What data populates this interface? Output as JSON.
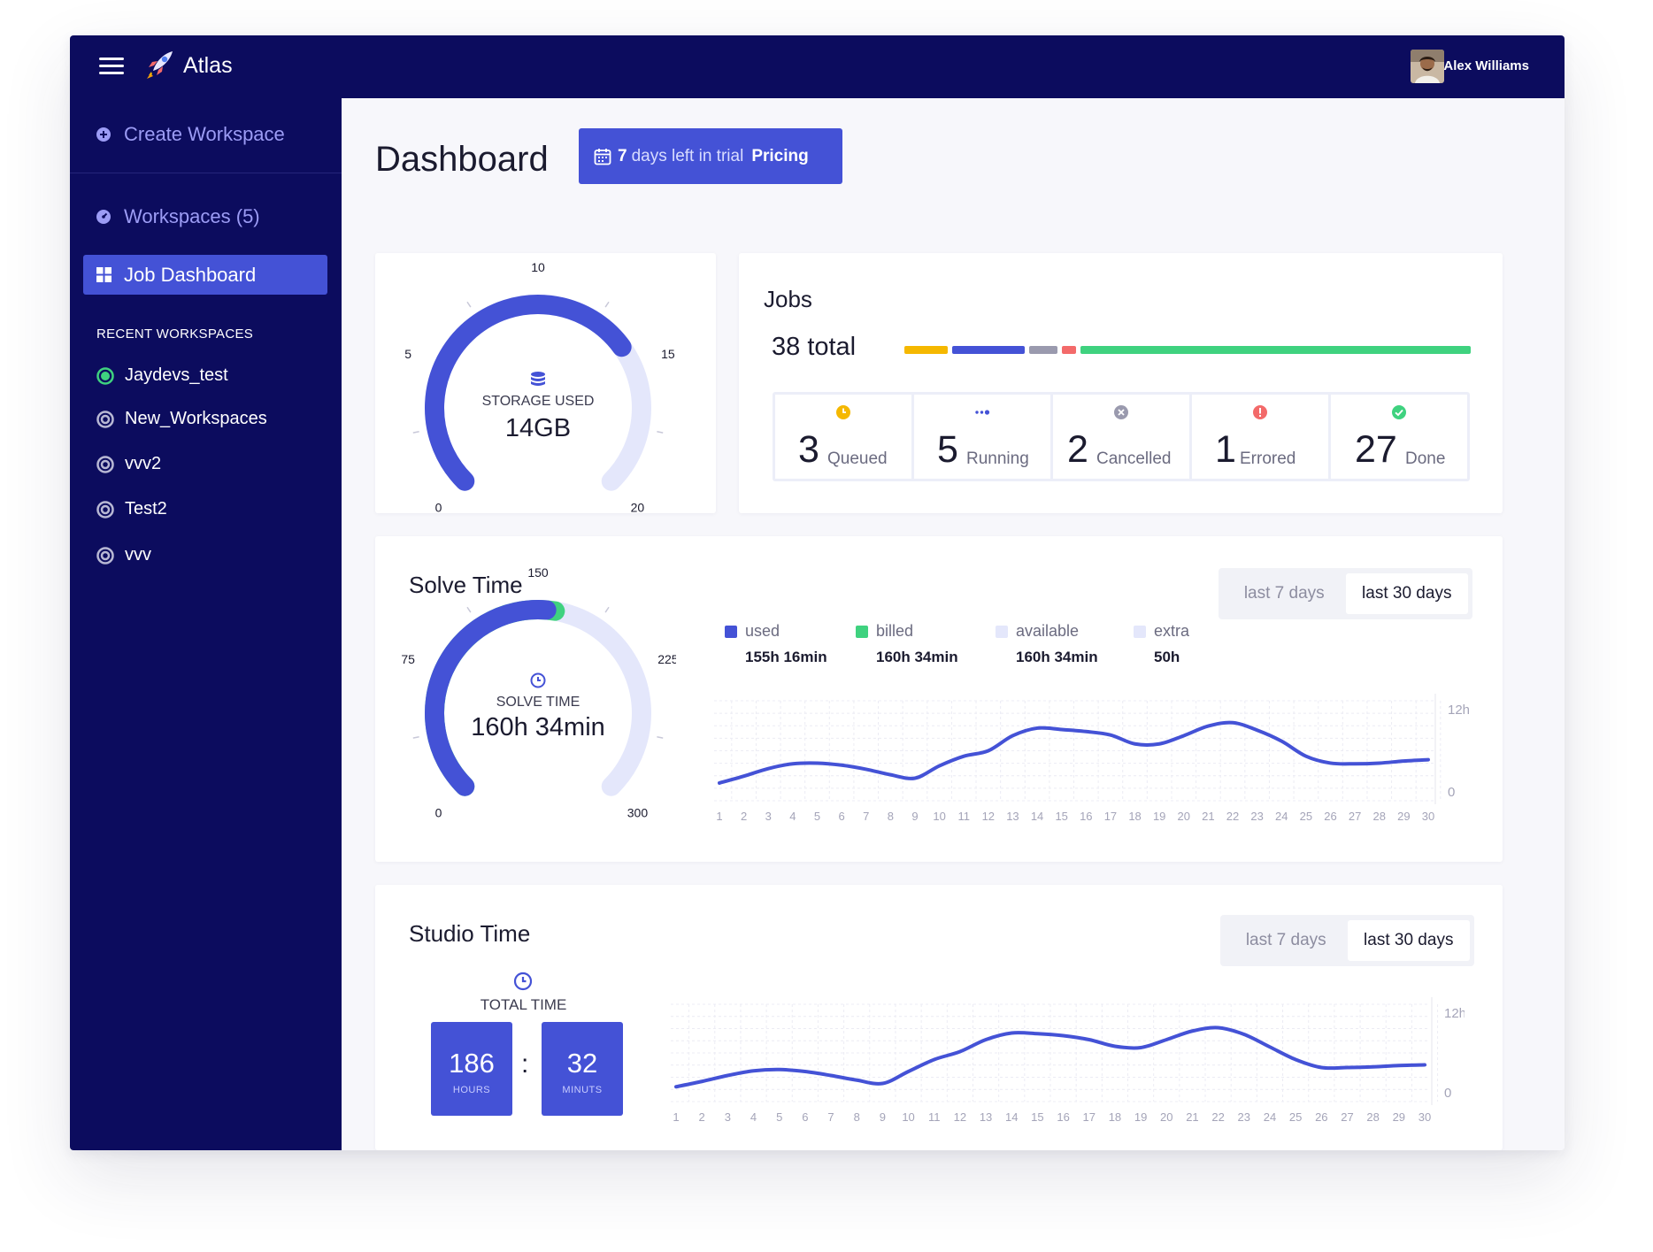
{
  "app": {
    "title": "Atlas",
    "user_name": "Alex Williams"
  },
  "sidebar": {
    "create_workspace": "Create Workspace",
    "workspaces": "Workspaces (5)",
    "active_item": "Job Dashboard",
    "recent_label": "RECENT WORKSPACES",
    "recent": [
      {
        "label": "Jaydevs_test",
        "active": true
      },
      {
        "label": "New_Workspaces",
        "active": false
      },
      {
        "label": "vvv2",
        "active": false
      },
      {
        "label": "Test2",
        "active": false
      },
      {
        "label": "vvv",
        "active": false
      }
    ]
  },
  "header": {
    "page_title": "Dashboard",
    "trial_days": "7",
    "trial_text": "days left in trial",
    "pricing": "Pricing"
  },
  "storage": {
    "label": "STORAGE USED",
    "value": "14GB",
    "ticks": [
      "0",
      "5",
      "10",
      "15",
      "20"
    ],
    "fill_value": 14,
    "max": 20
  },
  "jobs": {
    "title": "Jobs",
    "total": "38 total",
    "statuses": [
      {
        "count": "3",
        "label": "Queued",
        "color": "#f5b800",
        "icon": "clock-icon"
      },
      {
        "count": "5",
        "label": "Running",
        "color": "#4452d6",
        "icon": "dots-icon"
      },
      {
        "count": "2",
        "label": "Cancelled",
        "color": "#9a9aae",
        "icon": "x-circle-icon"
      },
      {
        "count": "1",
        "label": "Errored",
        "color": "#f36a6a",
        "icon": "alert-icon"
      },
      {
        "count": "27",
        "label": "Done",
        "color": "#3fd27f",
        "icon": "check-icon"
      }
    ]
  },
  "solve": {
    "title": "Solve Time",
    "range_7": "last 7 days",
    "range_30": "last 30 days",
    "gauge_label": "SOLVE TIME",
    "gauge_value": "160h 34min",
    "gauge_ticks": [
      "0",
      "75",
      "150",
      "225",
      "300"
    ],
    "gauge_used": 155.27,
    "gauge_billed": 160.57,
    "gauge_max": 300,
    "legend": [
      {
        "name": "used",
        "value": "155h 16min",
        "color": "#4452d6"
      },
      {
        "name": "billed",
        "value": "160h 34min",
        "color": "#3fd27f"
      },
      {
        "name": "available",
        "value": "160h 34min",
        "color": "#e4e7fb"
      },
      {
        "name": "extra",
        "value": "50h",
        "color": "#e4e7fb"
      }
    ]
  },
  "studio": {
    "title": "Studio Time",
    "range_7": "last 7 days",
    "range_30": "last 30 days",
    "total_label": "TOTAL TIME",
    "hours": "186",
    "hours_unit": "HOURS",
    "minutes": "32",
    "minutes_unit": "MINUTS",
    "separator": ":"
  },
  "chart_data": [
    {
      "type": "line",
      "title": "Solve Time",
      "x": [
        1,
        2,
        3,
        4,
        5,
        6,
        7,
        8,
        9,
        10,
        11,
        12,
        13,
        14,
        15,
        16,
        17,
        18,
        19,
        20,
        21,
        22,
        23,
        24,
        25,
        26,
        27,
        28,
        29,
        30
      ],
      "y_tick_labels": [
        "0",
        "12h"
      ],
      "ylim": [
        0,
        12
      ],
      "series": [
        {
          "values": [
            1.3,
            2.3,
            3.4,
            4.1,
            4.2,
            3.9,
            3.3,
            2.5,
            2.0,
            3.8,
            5.2,
            6.0,
            8.2,
            9.3,
            9.1,
            8.8,
            8.3,
            7.0,
            7.0,
            8.2,
            9.6,
            10.1,
            9.0,
            7.4,
            5.2,
            4.2,
            4.1,
            4.2,
            4.5,
            4.7
          ]
        }
      ],
      "grid": true
    },
    {
      "type": "line",
      "title": "Studio Time",
      "x": [
        1,
        2,
        3,
        4,
        5,
        6,
        7,
        8,
        9,
        10,
        11,
        12,
        13,
        14,
        15,
        16,
        17,
        18,
        19,
        20,
        21,
        22,
        23,
        24,
        25,
        26,
        27,
        28,
        29,
        30
      ],
      "y_tick_labels": [
        "0",
        "12h"
      ],
      "ylim": [
        0,
        12
      ],
      "series": [
        {
          "values": [
            0.9,
            1.7,
            2.6,
            3.3,
            3.5,
            3.2,
            2.6,
            1.9,
            1.4,
            3.2,
            5.0,
            6.2,
            8.0,
            9.0,
            8.9,
            8.6,
            8.0,
            7.0,
            6.8,
            8.0,
            9.3,
            9.8,
            8.8,
            6.9,
            5.0,
            3.8,
            3.8,
            3.9,
            4.1,
            4.2
          ]
        }
      ],
      "grid": true
    }
  ]
}
